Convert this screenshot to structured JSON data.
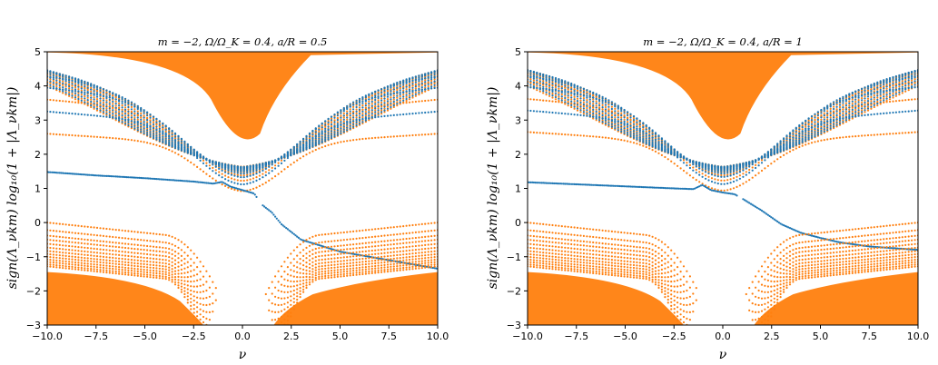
{
  "chart_data": [
    {
      "type": "scatter",
      "title": "m = −2,  Ω/Ω_K = 0.4,  a/R = 0.5",
      "xlabel": "ν",
      "ylabel": "sign(Λ_νkm) log₁₀(1 + |Λ_νkm|)",
      "xlim": [
        -10,
        10
      ],
      "ylim": [
        -3,
        5
      ],
      "xticks": [
        "−10.0",
        "−7.5",
        "−5.0",
        "−2.5",
        "0.0",
        "2.5",
        "5.0",
        "7.5",
        "10.0"
      ],
      "yticks": [
        "−3",
        "−2",
        "−1",
        "0",
        "1",
        "2",
        "3",
        "4",
        "5"
      ],
      "grid": false,
      "legend": "none",
      "series": [
        {
          "color": "#1f77b4",
          "kind": "eigenvalue branches",
          "branch_base_levels": [
            1.45,
            3.25,
            3.95,
            4.3,
            4.5,
            4.62,
            4.72,
            4.8,
            4.86,
            4.91,
            4.95
          ],
          "gap_nu": [
            -1.2,
            0.6
          ],
          "low_branch": [
            [
              -10,
              1.48
            ],
            [
              -7.5,
              1.38
            ],
            [
              -5,
              1.3
            ],
            [
              -2.5,
              1.2
            ],
            [
              -1.5,
              1.14
            ],
            [
              -1.05,
              1.19
            ],
            [
              -0.6,
              1.05
            ],
            [
              0,
              0.95
            ],
            [
              0.6,
              0.85
            ],
            [
              1,
              0.52
            ],
            [
              1.5,
              0.3
            ],
            [
              2,
              -0.05
            ],
            [
              3,
              -0.5
            ],
            [
              5,
              -0.85
            ],
            [
              7.5,
              -1.1
            ],
            [
              10,
              -1.35
            ]
          ]
        },
        {
          "color": "#ff7f0e",
          "kind": "eigenvalue branches",
          "upper_branch_base_levels": [
            2.6,
            3.6,
            4.12,
            4.4,
            4.56,
            4.67,
            4.76,
            4.83,
            4.89,
            4.93,
            4.97
          ],
          "lower_branch_levels": [
            0,
            -0.22,
            -0.38,
            -0.5,
            -0.62,
            -0.73,
            -0.83,
            -0.92,
            -1.0,
            -1.08,
            -1.15,
            -1.22,
            -1.28
          ],
          "dense_fill_upper_nu": [
            -2.5,
            2.5
          ],
          "dense_fill_lower_below": -1.4
        }
      ]
    },
    {
      "type": "scatter",
      "title": "m = −2,  Ω/Ω_K = 0.4,  a/R = 1",
      "xlabel": "ν",
      "ylabel": "sign(Λ_νkm) log₁₀(1 + |Λ_νkm|)",
      "xlim": [
        -10,
        10
      ],
      "ylim": [
        -3,
        5
      ],
      "xticks": [
        "−10.0",
        "−7.5",
        "−5.0",
        "−2.5",
        "0.0",
        "2.5",
        "5.0",
        "7.5",
        "10.0"
      ],
      "yticks": [
        "−3",
        "−2",
        "−1",
        "0",
        "1",
        "2",
        "3",
        "4",
        "5"
      ],
      "grid": false,
      "legend": "none",
      "series": [
        {
          "color": "#1f77b4",
          "kind": "eigenvalue branches",
          "branch_base_levels": [
            1.18,
            3.28,
            3.97,
            4.31,
            4.51,
            4.63,
            4.73,
            4.81,
            4.87,
            4.92,
            4.96
          ],
          "gap_nu": [
            -1.2,
            0.6
          ],
          "low_branch": [
            [
              -10,
              1.18
            ],
            [
              -7.5,
              1.12
            ],
            [
              -5,
              1.06
            ],
            [
              -2.5,
              1.0
            ],
            [
              -1.5,
              0.98
            ],
            [
              -1.05,
              1.1
            ],
            [
              -0.6,
              0.95
            ],
            [
              0,
              0.88
            ],
            [
              0.6,
              0.83
            ],
            [
              1,
              0.7
            ],
            [
              2,
              0.35
            ],
            [
              3,
              -0.05
            ],
            [
              4,
              -0.3
            ],
            [
              5,
              -0.45
            ],
            [
              6,
              -0.58
            ],
            [
              7.5,
              -0.7
            ],
            [
              10,
              -0.8
            ]
          ]
        },
        {
          "color": "#ff7f0e",
          "kind": "eigenvalue branches",
          "upper_branch_base_levels": [
            2.65,
            3.62,
            4.13,
            4.41,
            4.57,
            4.68,
            4.77,
            4.84,
            4.9,
            4.94,
            4.97
          ],
          "lower_branch_levels": [
            0,
            -0.22,
            -0.38,
            -0.5,
            -0.62,
            -0.73,
            -0.83,
            -0.92,
            -1.0,
            -1.08,
            -1.15,
            -1.22,
            -1.28
          ],
          "dense_fill_upper_nu": [
            -2.5,
            2.5
          ],
          "dense_fill_lower_below": -1.4
        }
      ]
    }
  ]
}
